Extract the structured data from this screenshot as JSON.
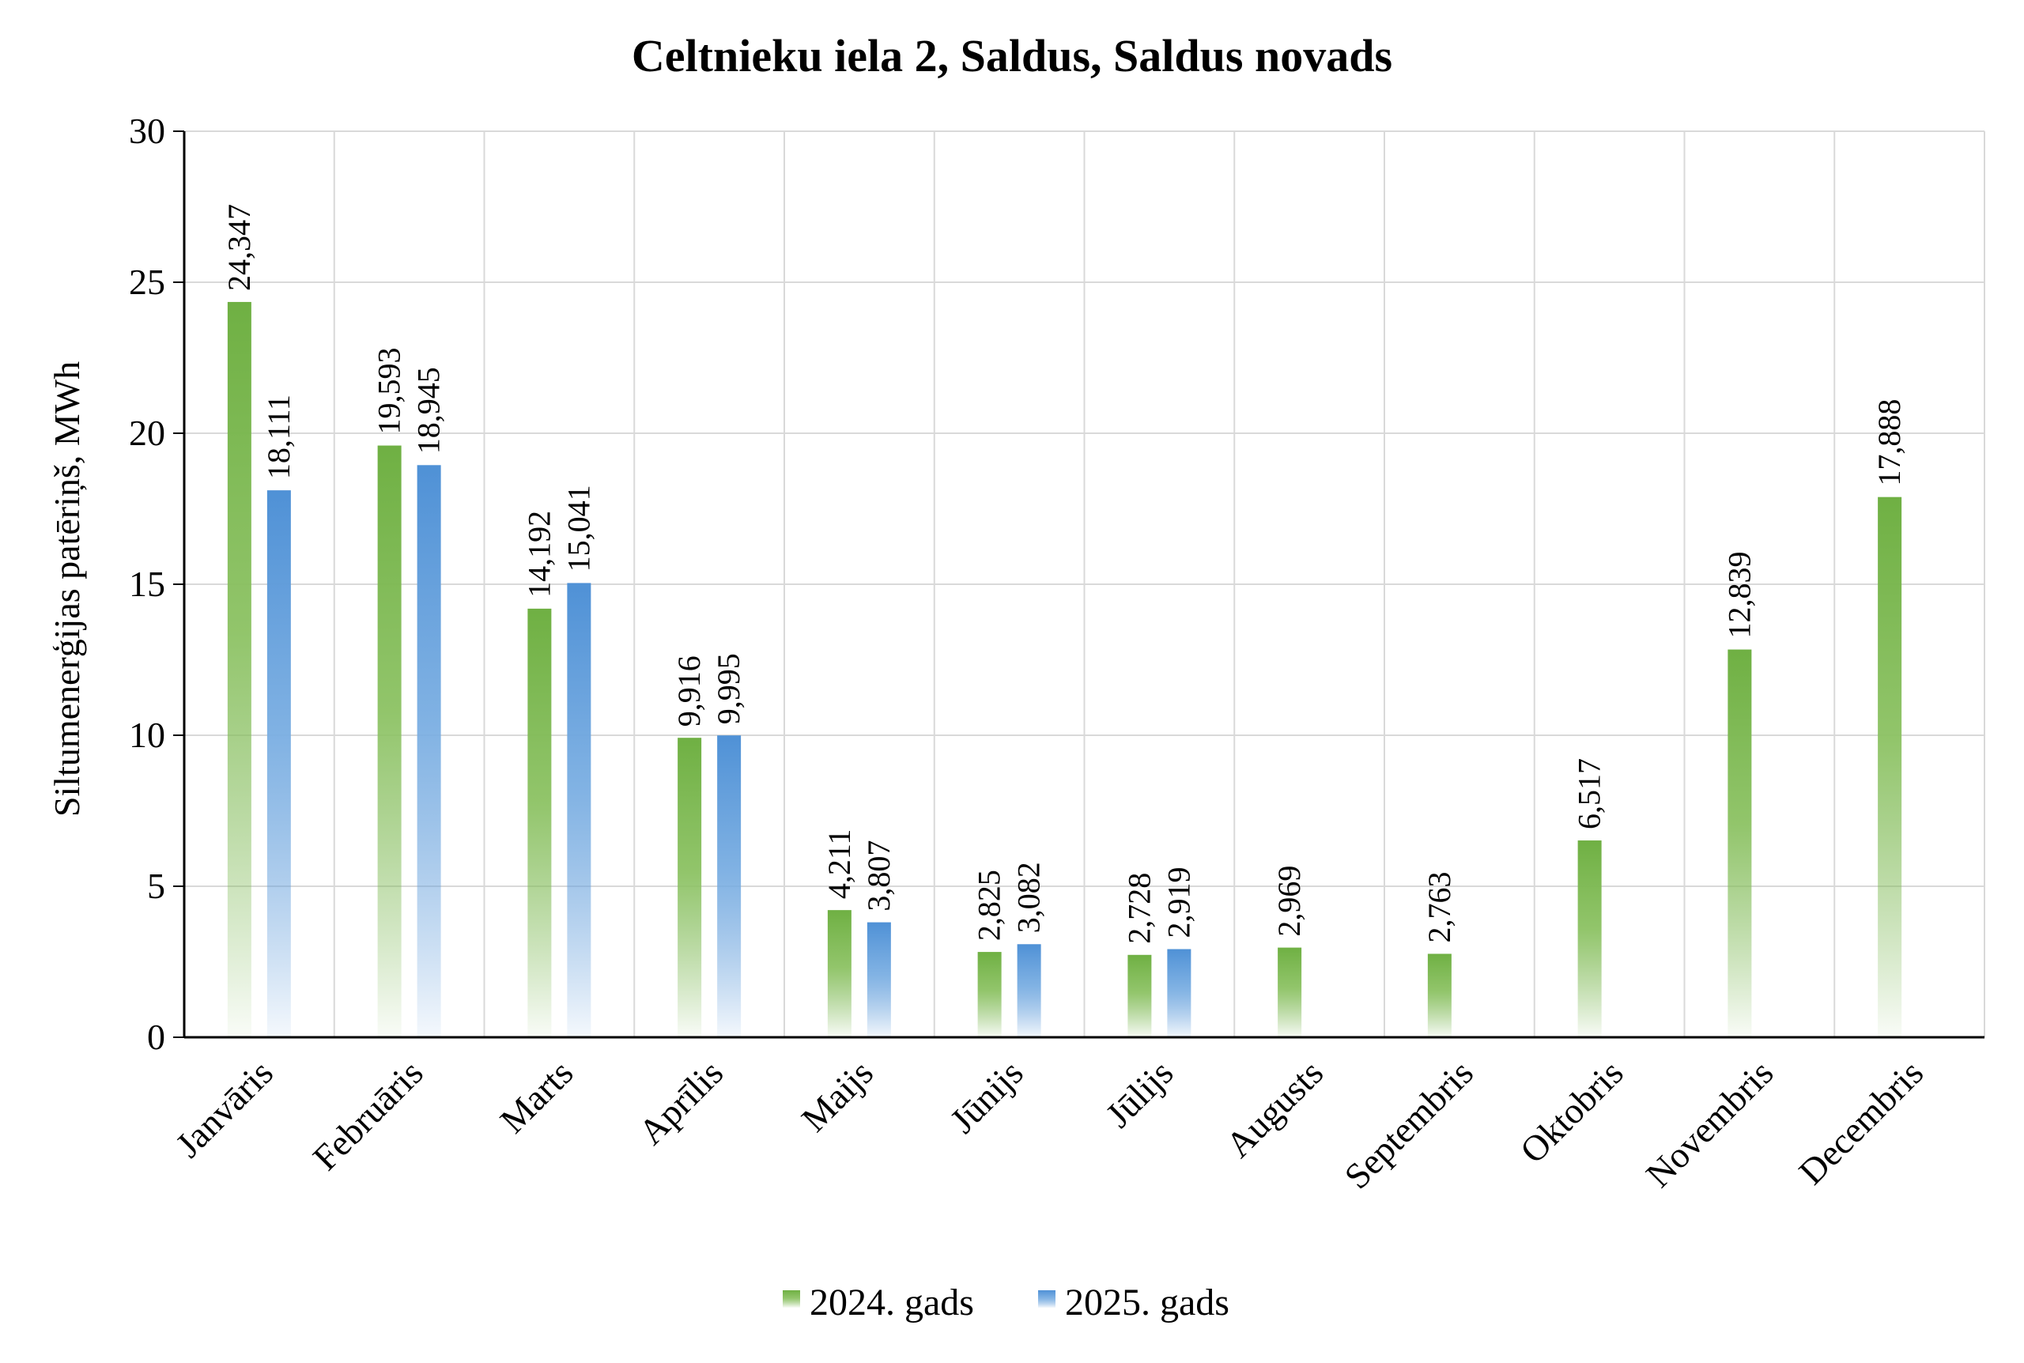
{
  "chart_data": {
    "type": "bar",
    "title": "Celtnieku iela 2, Saldus, Saldus novads",
    "xlabel": "",
    "ylabel": "Siltumenerģijas patēriņš, MWh",
    "ylim": [
      0,
      30
    ],
    "yticks": [
      "0",
      "5",
      "10",
      "15",
      "20",
      "25",
      "30"
    ],
    "grid": true,
    "legend_position": "bottom",
    "categories": [
      "Janvāris",
      "Februāris",
      "Marts",
      "Aprīlis",
      "Maijs",
      "Jūnijs",
      "Jūlijs",
      "Augusts",
      "Septembris",
      "Oktobris",
      "Novembris",
      "Decembris"
    ],
    "series": [
      {
        "name": "2024. gads",
        "color": "#6fb043",
        "values": [
          24.347,
          19.593,
          14.192,
          9.916,
          4.211,
          2.825,
          2.728,
          2.969,
          2.763,
          6.517,
          12.839,
          17.888
        ],
        "labels": [
          "24,347",
          "19,593",
          "14,192",
          "9,916",
          "4,211",
          "2,825",
          "2,728",
          "2,969",
          "2,763",
          "6,517",
          "12,839",
          "17,888"
        ]
      },
      {
        "name": "2025. gads",
        "color": "#4f91d6",
        "values": [
          18.111,
          18.945,
          15.041,
          9.995,
          3.807,
          3.082,
          2.919,
          null,
          null,
          null,
          null,
          null
        ],
        "labels": [
          "18,111",
          "18,945",
          "15,041",
          "9,995",
          "3,807",
          "3,082",
          "2,919",
          null,
          null,
          null,
          null,
          null
        ]
      }
    ]
  }
}
